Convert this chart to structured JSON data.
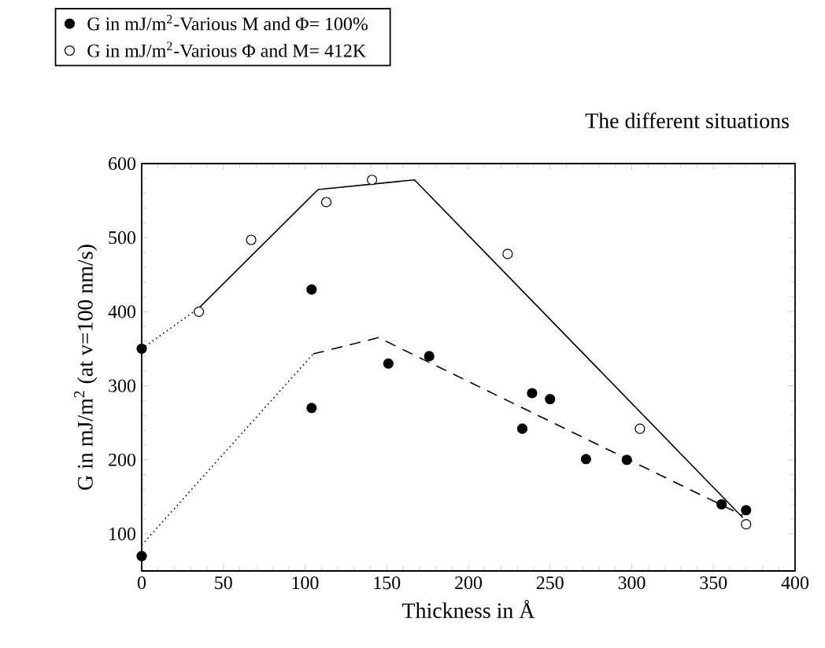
{
  "chart_data": {
    "type": "scatter",
    "title": "The different situations",
    "xlabel": "Thickness in Å",
    "ylabel": "G in mJ/m$^{2}$ (at v=100 nm/s)",
    "xlim": [
      0,
      400
    ],
    "ylim": [
      50,
      600
    ],
    "xticks": [
      0,
      50,
      100,
      150,
      200,
      250,
      300,
      350,
      400
    ],
    "yticks": [
      100,
      200,
      300,
      400,
      500,
      600
    ],
    "legend": "top left",
    "marker": "circle",
    "grid": false,
    "series": [
      {
        "name": "G in mJ/m$^{2}$-Various M and Φ= 100%",
        "color": "#000000",
        "x": [
          0,
          0,
          104,
          104,
          151,
          176,
          233,
          239,
          250,
          272,
          297,
          355,
          370
        ],
        "values": [
          70,
          350,
          430,
          270,
          330,
          340,
          242,
          290,
          282,
          201,
          200,
          140,
          132
        ]
      },
      {
        "name": "G in mJ/m$^{2}$-Various Φ and M= 412K",
        "color": "#ffffff",
        "x": [
          35,
          67,
          113,
          141,
          224,
          305,
          370
        ],
        "values": [
          400,
          497,
          548,
          578,
          478,
          242,
          113
        ]
      },
      {
        "type": "line",
        "color": "#000000",
        "line_style": "solid",
        "marker": "none",
        "x": [
          35,
          108,
          167,
          368
        ],
        "values": [
          405,
          565,
          578,
          122
        ]
      },
      {
        "type": "line",
        "color": "#000000",
        "line_style": "dashed",
        "marker": "none",
        "x": [
          105,
          145,
          368
        ],
        "values": [
          343,
          365,
          125
        ]
      },
      {
        "type": "line",
        "color": "#000000",
        "line_style": "dotted",
        "marker": "none",
        "x": [
          0,
          35
        ],
        "values": [
          350,
          405
        ]
      },
      {
        "type": "line",
        "color": "#000000",
        "line_style": "dotted",
        "marker": "none",
        "x": [
          0,
          105
        ],
        "values": [
          85,
          343
        ]
      }
    ]
  }
}
